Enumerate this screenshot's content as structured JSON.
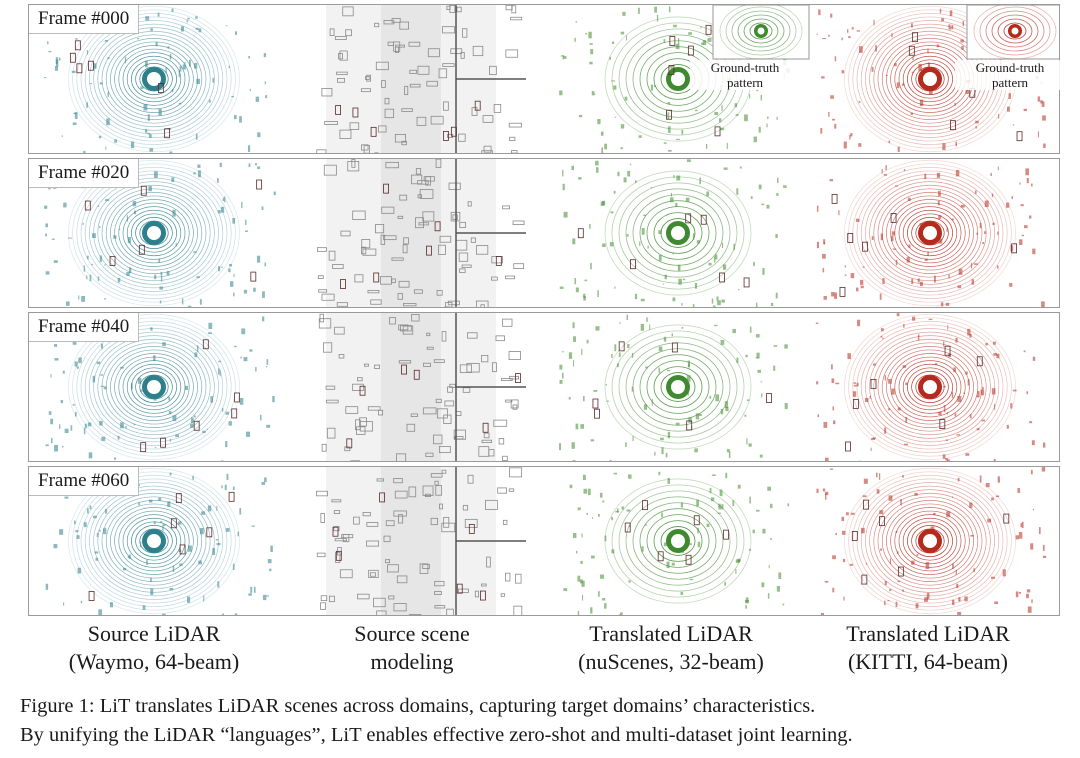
{
  "rows": [
    {
      "frame_label": "Frame #000"
    },
    {
      "frame_label": "Frame #020"
    },
    {
      "frame_label": "Frame #040"
    },
    {
      "frame_label": "Frame #060"
    }
  ],
  "insets": {
    "nuscenes_label_line1": "Ground-truth",
    "nuscenes_label_line2": "pattern",
    "kitti_label_line1": "Ground-truth",
    "kitti_label_line2": "pattern"
  },
  "columns": [
    {
      "line1": "Source LiDAR",
      "line2": "(Waymo, 64-beam)",
      "color": "#2d7f8c"
    },
    {
      "line1": "Source scene",
      "line2": "modeling",
      "color": "#8a8a8a"
    },
    {
      "line1": "Translated LiDAR",
      "line2": "(nuScenes, 32-beam)",
      "color": "#3f8a2e"
    },
    {
      "line1": "Translated LiDAR",
      "line2": "(KITTI, 64-beam)",
      "color": "#b52a1c"
    }
  ],
  "caption": {
    "line1": "Figure 1: LiT translates LiDAR scenes across domains, capturing target domains’ characteristics.",
    "line2": "By unifying the LiDAR “languages”, LiT enables effective zero-shot and multi-dataset joint learning."
  }
}
